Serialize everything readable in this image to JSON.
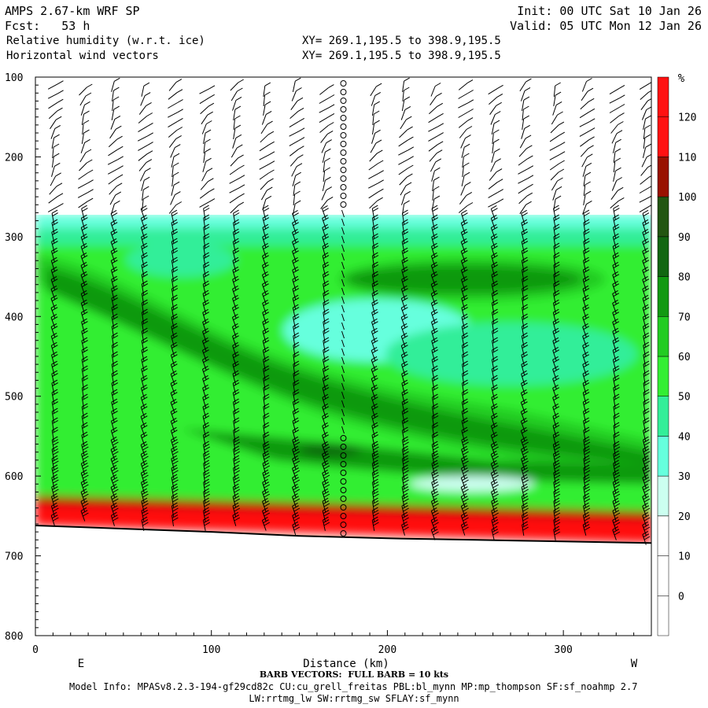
{
  "header": {
    "title": "AMPS 2.67-km WRF SP",
    "fcst": "Fcst:   53 h",
    "init": "Init: 00 UTC Sat 10 Jan 26",
    "valid": "Valid: 05 UTC Mon 12 Jan 26",
    "field1": "Relative humidity (w.r.t. ice)",
    "field2": "Horizontal wind vectors",
    "xy1": "XY= 269.1,195.5 to 398.9,195.5",
    "xy2": "XY= 269.1,195.5 to 398.9,195.5"
  },
  "footer": {
    "barb_note": "BARB VECTORS:  FULL BARB = 10 kts",
    "model_info": "Model Info: MPASv8.2.3-194-gf29cd82c CU:cu_grell_freitas PBL:bl_mynn MP:mp_thompson SF:sf_noahmp 2.7",
    "model_info2": "LW:rrtmg_lw SW:rrtmg_sw SFLAY:sf_mynn"
  },
  "colors": {
    "bands": [
      "#ffffff",
      "#ffffff",
      "#ffffff",
      "#ccfff0",
      "#66ffdd",
      "#33ee99",
      "#33ee33",
      "#22cc22",
      "#119911",
      "#116611",
      "#225511",
      "#991100",
      "#ff1111"
    ],
    "terrain": "#ffffff",
    "surface_line": "#000000"
  },
  "chart_data": {
    "type": "cross-section contour with wind barbs",
    "xlabel": "Distance (km)",
    "ylabel": "",
    "xlim": [
      0,
      350
    ],
    "ylim": [
      800,
      100
    ],
    "xticks": [
      0,
      100,
      200,
      300
    ],
    "xtick_labels": [
      "0",
      "100",
      "200",
      "300"
    ],
    "yticks": [
      100,
      200,
      300,
      400,
      500,
      600,
      700,
      800
    ],
    "ytick_labels": [
      "100",
      "200",
      "300",
      "400",
      "500",
      "600",
      "700",
      "800"
    ],
    "end_labels": {
      "left": "E",
      "right": "W"
    },
    "colorbar": {
      "unit": "%",
      "levels": [
        0,
        10,
        20,
        30,
        40,
        50,
        60,
        70,
        80,
        90,
        100,
        110,
        120
      ],
      "labels": [
        "0",
        "10",
        "20",
        "30",
        "40",
        "50",
        "60",
        "70",
        "80",
        "90",
        "100",
        "110",
        "120"
      ]
    },
    "surface_pressure": [
      [
        0,
        662
      ],
      [
        50,
        666
      ],
      [
        100,
        670
      ],
      [
        150,
        675
      ],
      [
        200,
        678
      ],
      [
        250,
        680
      ],
      [
        300,
        682
      ],
      [
        350,
        684
      ]
    ],
    "rh_features": [
      {
        "description": "dry upper troposphere",
        "pressure_top": 100,
        "pressure_bottom": 270,
        "rh": 0
      },
      {
        "description": "moist layer 300-600 hPa",
        "rh_range": [
          50,
          90
        ]
      },
      {
        "description": "moist band near surface",
        "rh_range": [
          110,
          120
        ]
      }
    ],
    "barb_columns_km": [
      10,
      27,
      44,
      61,
      78,
      96,
      113,
      130,
      147,
      164,
      175,
      192,
      209,
      226,
      243,
      260,
      277,
      295,
      312,
      329,
      346
    ]
  }
}
